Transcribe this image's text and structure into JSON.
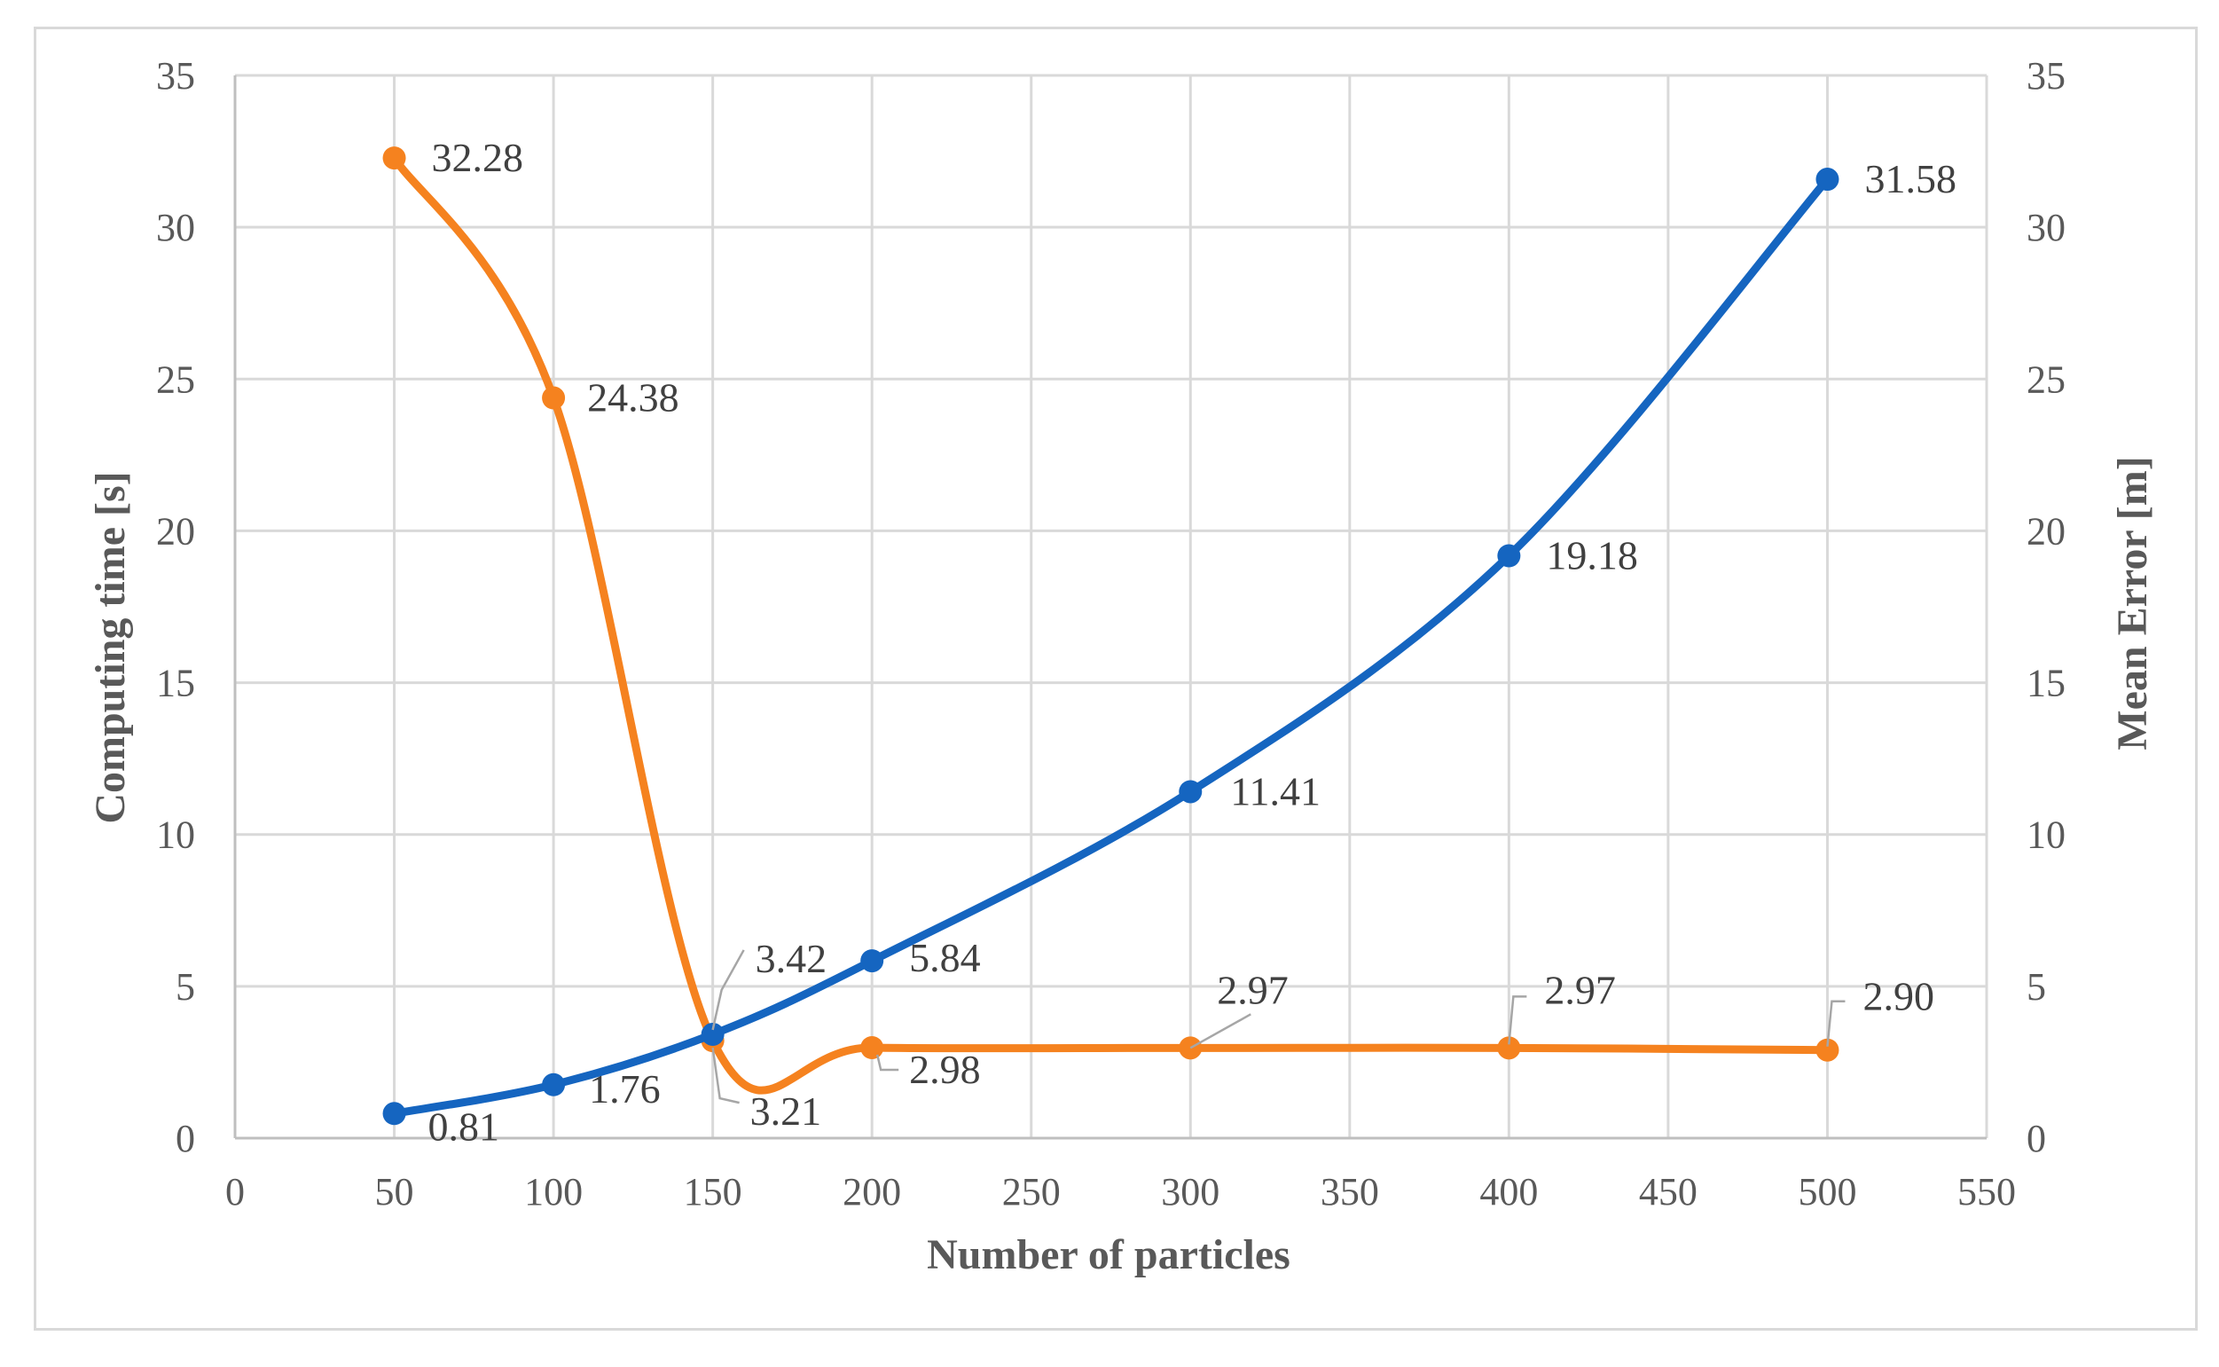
{
  "chart_data": {
    "type": "line",
    "title": "",
    "xlabel": "Number of particles",
    "ylabel": "Computing time [s]",
    "y2label": "Mean Error [m]",
    "xlim": [
      0,
      550
    ],
    "ylim": [
      0,
      35
    ],
    "y2lim": [
      0,
      35
    ],
    "x_ticks": [
      "0",
      "50",
      "100",
      "150",
      "200",
      "250",
      "300",
      "350",
      "400",
      "450",
      "500",
      "550"
    ],
    "y_ticks": [
      "0",
      "5",
      "10",
      "15",
      "20",
      "25",
      "30",
      "35"
    ],
    "y2_ticks": [
      "0",
      "5",
      "10",
      "15",
      "20",
      "25",
      "30",
      "35"
    ],
    "grid": true,
    "smooth": true,
    "series": [
      {
        "name": "Computing time [s]",
        "axis": "left",
        "color": "#1565c0",
        "x": [
          50,
          100,
          150,
          200,
          300,
          400,
          500
        ],
        "values": [
          0.81,
          1.76,
          3.42,
          5.84,
          11.41,
          19.18,
          31.58
        ],
        "labels": [
          "0.81",
          "1.76",
          "3.42",
          "5.84",
          "11.41",
          "19.18",
          "31.58"
        ]
      },
      {
        "name": "Mean Error [m]",
        "axis": "right",
        "color": "#f5821f",
        "x": [
          50,
          100,
          150,
          200,
          300,
          400,
          500
        ],
        "values": [
          32.28,
          24.38,
          3.21,
          2.98,
          2.97,
          2.97,
          2.9
        ],
        "labels": [
          "32.28",
          "24.38",
          "3.21",
          "2.98",
          "2.97",
          "2.97",
          "2.90"
        ]
      }
    ]
  }
}
